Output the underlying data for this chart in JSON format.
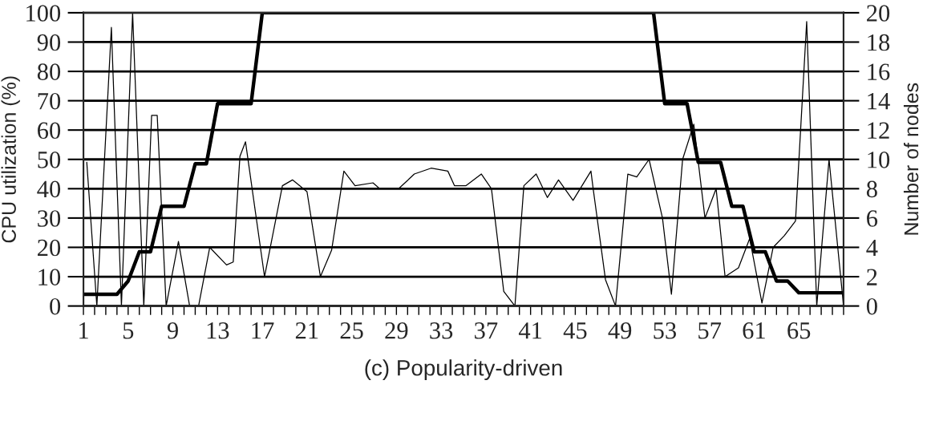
{
  "chart_data": {
    "type": "line",
    "xlabel": "(c) Popularity-driven",
    "ylabel": "CPU utilization (%)",
    "y2label": "Number of nodes",
    "xlim": [
      1,
      69
    ],
    "ylim": [
      0,
      100
    ],
    "yticks": [
      0,
      10,
      20,
      30,
      40,
      50,
      60,
      70,
      80,
      90,
      100
    ],
    "y2lim": [
      0,
      20
    ],
    "y2ticks": [
      0,
      2,
      4,
      6,
      8,
      10,
      12,
      14,
      16,
      18,
      20
    ],
    "xticks": [
      1,
      {
        "value": 2,
        "label": null
      },
      {
        "value": 3,
        "label": null
      },
      {
        "value": 4,
        "label": null
      },
      5,
      {
        "value": 6,
        "label": null
      },
      {
        "value": 7,
        "label": null
      },
      {
        "value": 8,
        "label": null
      },
      9,
      {
        "value": 10,
        "label": null
      },
      {
        "value": 11,
        "label": null
      },
      {
        "value": 12,
        "label": null
      },
      13,
      {
        "value": 14,
        "label": null
      },
      {
        "value": 15,
        "label": null
      },
      {
        "value": 16,
        "label": null
      },
      17,
      {
        "value": 18,
        "label": null
      },
      {
        "value": 19,
        "label": null
      },
      {
        "value": 20,
        "label": null
      },
      21,
      {
        "value": 22,
        "label": null
      },
      {
        "value": 23,
        "label": null
      },
      {
        "value": 24,
        "label": null
      },
      25,
      {
        "value": 26,
        "label": null
      },
      {
        "value": 27,
        "label": null
      },
      {
        "value": 28,
        "label": null
      },
      29,
      {
        "value": 30,
        "label": null
      },
      {
        "value": 31,
        "label": null
      },
      {
        "value": 32,
        "label": null
      },
      33,
      {
        "value": 34,
        "label": null
      },
      {
        "value": 35,
        "label": null
      },
      {
        "value": 36,
        "label": null
      },
      37,
      {
        "value": 38,
        "label": null
      },
      {
        "value": 39,
        "label": null
      },
      {
        "value": 40,
        "label": null
      },
      41,
      {
        "value": 42,
        "label": null
      },
      {
        "value": 43,
        "label": null
      },
      {
        "value": 44,
        "label": null
      },
      45,
      {
        "value": 46,
        "label": null
      },
      {
        "value": 47,
        "label": null
      },
      {
        "value": 48,
        "label": null
      },
      49,
      {
        "value": 50,
        "label": null
      },
      {
        "value": 51,
        "label": null
      },
      {
        "value": 52,
        "label": null
      },
      53,
      {
        "value": 54,
        "label": null
      },
      {
        "value": 55,
        "label": null
      },
      {
        "value": 56,
        "label": null
      },
      57,
      {
        "value": 58,
        "label": null
      },
      {
        "value": 59,
        "label": null
      },
      {
        "value": 60,
        "label": null
      },
      61,
      {
        "value": 62,
        "label": null
      },
      {
        "value": 63,
        "label": null
      },
      {
        "value": 64,
        "label": null
      },
      65,
      {
        "value": 66,
        "label": null
      },
      {
        "value": 67,
        "label": null
      },
      {
        "value": 68,
        "label": null
      },
      {
        "value": 69,
        "label": null
      }
    ],
    "grid": "y",
    "series": [
      {
        "color": "#000000",
        "x": [
          1.3,
          2.2,
          3.5,
          4.4,
          5.4,
          6.4,
          7.1,
          7.6,
          8.4,
          9.5,
          10.5,
          11.3,
          12.3,
          13.8,
          14.4,
          15.0,
          15.5,
          17.2,
          18.8,
          19.7,
          21.0,
          22.2,
          23.2,
          24.3,
          25.3,
          26.9,
          27.5,
          29.2,
          30.6,
          32.1,
          33.6,
          34.2,
          35.2,
          36.6,
          37.5,
          38.6,
          39.6,
          40.4,
          41.5,
          42.5,
          43.5,
          44.8,
          46.4,
          46.6,
          47.7,
          48.6,
          49.7,
          50.5,
          51.6,
          52.8,
          53.6,
          54.6,
          55.6,
          56.6,
          57.6,
          58.4,
          59.6,
          60.6,
          61.7,
          62.7,
          63.7,
          64.7,
          65.7,
          66.6,
          67.7,
          69.0
        ],
        "values": [
          49,
          0,
          95,
          0,
          100,
          0,
          65,
          65,
          0,
          22,
          0,
          0,
          20,
          14,
          15,
          51,
          56,
          10,
          41,
          43,
          39,
          10,
          19,
          46,
          41,
          42,
          40,
          40,
          45,
          47,
          46,
          41,
          41,
          45,
          40,
          5,
          0,
          41,
          45,
          37,
          43,
          36,
          46,
          40,
          9,
          0,
          45,
          44,
          50,
          30,
          4,
          50,
          62,
          30,
          40,
          10,
          13,
          23,
          1,
          20,
          24,
          29,
          97,
          0,
          50,
          0
        ]
      },
      {
        "color": "#000000",
        "axis": "y2",
        "x": [
          1,
          4,
          5,
          6,
          7,
          8,
          10,
          11,
          12,
          13,
          16,
          17,
          52,
          53,
          55,
          56,
          58,
          59,
          60,
          61,
          62,
          63,
          64,
          65,
          69
        ],
        "values": [
          0.8,
          0.8,
          1.7,
          3.7,
          3.7,
          6.8,
          6.8,
          9.7,
          9.7,
          13.8,
          13.8,
          20,
          20,
          13.8,
          13.8,
          9.8,
          9.8,
          6.8,
          6.8,
          3.7,
          3.7,
          1.7,
          1.7,
          0.9,
          0.9
        ]
      }
    ]
  }
}
